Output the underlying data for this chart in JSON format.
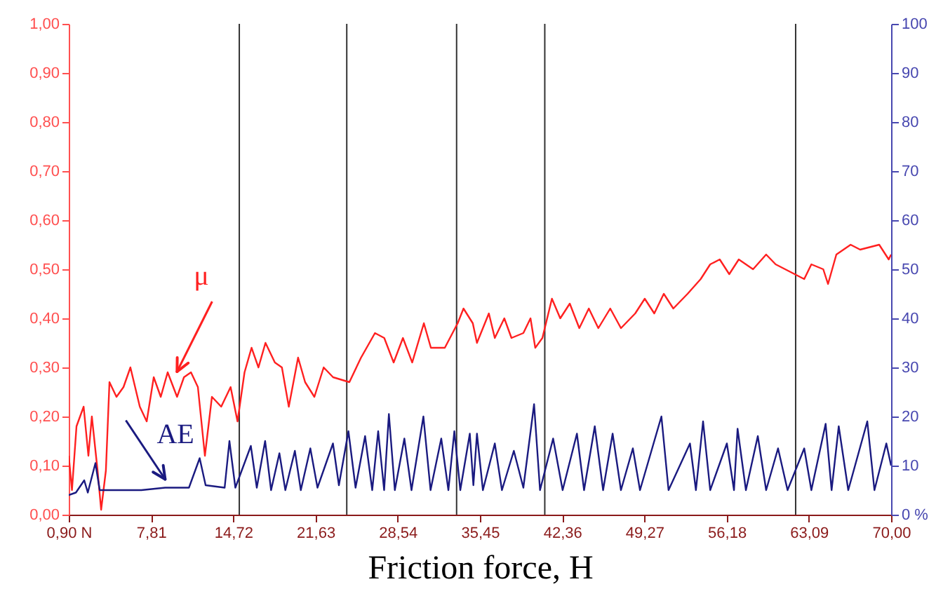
{
  "chart_data": {
    "type": "line",
    "xlabel": "Friction force, H",
    "xlim": [
      0.9,
      70.0
    ],
    "xticks": [
      {
        "value": 0.9,
        "label": "0,90 N"
      },
      {
        "value": 7.81,
        "label": "7,81"
      },
      {
        "value": 14.72,
        "label": "14,72"
      },
      {
        "value": 21.63,
        "label": "21,63"
      },
      {
        "value": 28.54,
        "label": "28,54"
      },
      {
        "value": 35.45,
        "label": "35,45"
      },
      {
        "value": 42.36,
        "label": "42,36"
      },
      {
        "value": 49.27,
        "label": "49,27"
      },
      {
        "value": 56.18,
        "label": "56,18"
      },
      {
        "value": 63.09,
        "label": "63,09"
      },
      {
        "value": 70.0,
        "label": "70,00"
      }
    ],
    "ylim": [
      0,
      1
    ],
    "yticks": [
      {
        "value": 0,
        "label": "0,00"
      },
      {
        "value": 0.1,
        "label": "0,10"
      },
      {
        "value": 0.2,
        "label": "0,20"
      },
      {
        "value": 0.3,
        "label": "0,30"
      },
      {
        "value": 0.4,
        "label": "0,40"
      },
      {
        "value": 0.5,
        "label": "0,50"
      },
      {
        "value": 0.6,
        "label": "0,60"
      },
      {
        "value": 0.7,
        "label": "0,70"
      },
      {
        "value": 0.8,
        "label": "0,80"
      },
      {
        "value": 0.9,
        "label": "0,90"
      },
      {
        "value": 1,
        "label": "1,00"
      }
    ],
    "y2lim": [
      0,
      100
    ],
    "y2ticks": [
      {
        "value": 0,
        "label": "0 %"
      },
      10,
      20,
      30,
      40,
      50,
      60,
      70,
      80,
      90,
      100
    ],
    "ref_lines": [
      {
        "axis": "x",
        "value": 15.23,
        "color": "#333333"
      },
      {
        "axis": "x",
        "value": 24.26,
        "color": "#333333"
      },
      {
        "axis": "x",
        "value": 33.49,
        "color": "#333333"
      },
      {
        "axis": "x",
        "value": 40.9,
        "color": "#333333"
      },
      {
        "axis": "x",
        "value": 61.98,
        "color": "#333333"
      }
    ],
    "series": [
      {
        "name": "μ",
        "color": "#ff2020",
        "axis": "y",
        "x": [
          0.9,
          1.17,
          1.55,
          2.15,
          2.55,
          2.84,
          3.32,
          3.62,
          4.02,
          4.32,
          4.91,
          5.5,
          6.08,
          6.87,
          7.45,
          8.04,
          8.63,
          9.21,
          10.0,
          10.58,
          11.17,
          11.75,
          12.34,
          12.93,
          13.71,
          14.5,
          15.08,
          15.67,
          16.26,
          16.84,
          17.43,
          18.22,
          18.81,
          19.39,
          20.17,
          20.76,
          21.54,
          22.32,
          23.11,
          24.48,
          25.46,
          26.63,
          27.41,
          28.2,
          28.98,
          29.76,
          30.74,
          31.33,
          32.5,
          33.58,
          34.07,
          34.85,
          35.2,
          36.2,
          36.7,
          37.5,
          38.1,
          39.1,
          39.7,
          40.1,
          40.7,
          41.5,
          42.2,
          43.0,
          43.8,
          44.6,
          45.4,
          46.4,
          47.3,
          48.5,
          49.3,
          50.1,
          50.9,
          51.7,
          52.9,
          54.0,
          54.8,
          55.6,
          56.4,
          57.2,
          58.4,
          59.5,
          60.3,
          61.9,
          62.7,
          63.3,
          64.3,
          64.7,
          65.4,
          66.6,
          67.4,
          69.0,
          69.8,
          70.0
        ],
        "values": [
          0.12,
          0.05,
          0.18,
          0.22,
          0.12,
          0.2,
          0.09,
          0.01,
          0.09,
          0.27,
          0.24,
          0.26,
          0.3,
          0.22,
          0.19,
          0.28,
          0.24,
          0.29,
          0.24,
          0.28,
          0.29,
          0.26,
          0.12,
          0.24,
          0.22,
          0.26,
          0.19,
          0.29,
          0.34,
          0.3,
          0.35,
          0.31,
          0.3,
          0.22,
          0.32,
          0.27,
          0.24,
          0.3,
          0.28,
          0.27,
          0.32,
          0.37,
          0.36,
          0.31,
          0.36,
          0.31,
          0.39,
          0.34,
          0.34,
          0.39,
          0.42,
          0.39,
          0.35,
          0.41,
          0.36,
          0.4,
          0.36,
          0.37,
          0.4,
          0.34,
          0.36,
          0.44,
          0.4,
          0.43,
          0.38,
          0.42,
          0.38,
          0.42,
          0.38,
          0.41,
          0.44,
          0.41,
          0.45,
          0.42,
          0.45,
          0.48,
          0.51,
          0.52,
          0.49,
          0.52,
          0.5,
          0.53,
          0.51,
          0.49,
          0.48,
          0.51,
          0.5,
          0.47,
          0.53,
          0.55,
          0.54,
          0.55,
          0.52,
          0.53
        ]
      },
      {
        "name": "AE",
        "color": "#1a1a80",
        "axis": "y2",
        "x": [
          0.9,
          1.5,
          2.2,
          2.5,
          3.14,
          3.5,
          5.0,
          7.0,
          9.0,
          11.0,
          11.9,
          12.4,
          14.0,
          14.4,
          14.9,
          16.2,
          16.7,
          17.4,
          17.9,
          18.6,
          19.1,
          19.9,
          20.4,
          21.2,
          21.8,
          23.1,
          23.6,
          24.4,
          25.0,
          25.8,
          26.4,
          26.9,
          27.4,
          27.8,
          28.3,
          29.1,
          29.7,
          30.7,
          31.3,
          32.2,
          32.8,
          33.3,
          33.8,
          34.6,
          34.9,
          35.2,
          35.7,
          36.7,
          37.3,
          38.3,
          39.1,
          40.0,
          40.5,
          41.6,
          42.4,
          43.6,
          44.2,
          45.1,
          45.8,
          46.6,
          47.3,
          48.3,
          48.9,
          50.7,
          51.3,
          53.1,
          53.6,
          54.2,
          54.8,
          56.2,
          56.8,
          57.1,
          57.8,
          58.8,
          59.5,
          60.5,
          61.3,
          62.7,
          63.3,
          64.5,
          65.0,
          65.6,
          66.4,
          68.0,
          68.6,
          69.6,
          70.0
        ],
        "values": [
          4,
          4.5,
          7,
          4.5,
          10.5,
          5,
          5,
          5,
          5.5,
          5.5,
          11.5,
          6,
          5.5,
          15,
          5.5,
          14,
          5.5,
          15,
          5,
          12.5,
          5,
          13,
          5,
          13.5,
          5.5,
          14.5,
          6,
          17,
          5.5,
          16,
          5,
          17,
          5,
          20.5,
          5,
          15.5,
          5,
          20,
          5,
          15.5,
          5,
          17,
          5,
          16.5,
          6,
          16.5,
          5,
          14.5,
          5,
          13,
          5.5,
          22.5,
          5,
          15.5,
          5,
          16.5,
          5,
          18,
          5,
          16.5,
          5,
          13.5,
          5,
          20,
          5,
          14.5,
          5,
          19,
          5,
          14.5,
          5,
          17.5,
          5,
          16,
          5,
          13.5,
          5,
          13.5,
          5,
          18.5,
          5,
          18,
          5,
          19,
          5,
          14.5,
          10
        ]
      }
    ]
  }
}
